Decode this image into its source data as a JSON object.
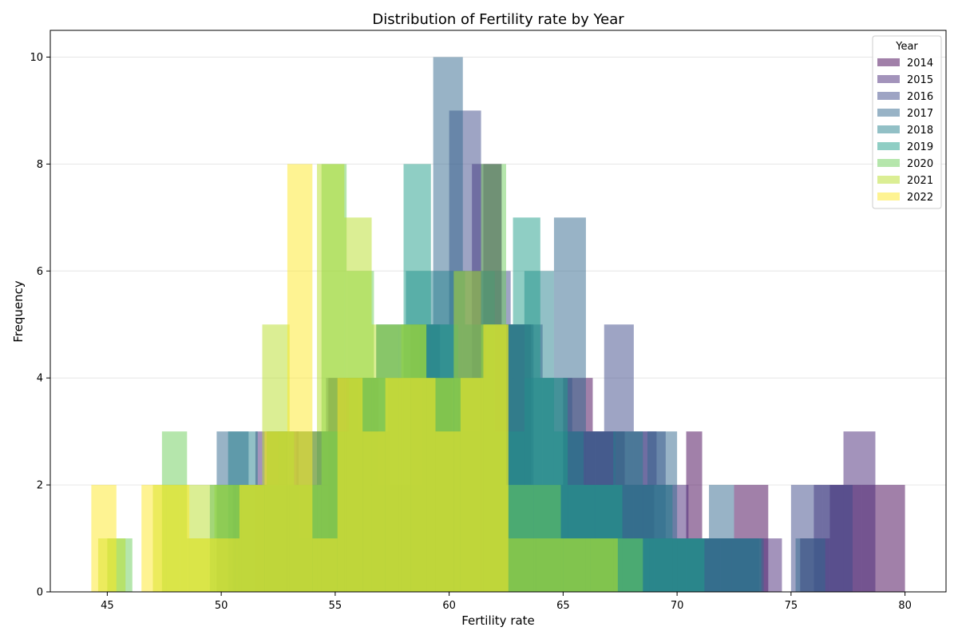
{
  "chart_data": {
    "type": "bar",
    "title": "Distribution of Fertility rate by Year",
    "xlabel": "Fertility rate",
    "ylabel": "Frequency",
    "xlim": [
      42.5,
      81.8
    ],
    "ylim": [
      0,
      10.5
    ],
    "xticks": [
      45,
      50,
      55,
      60,
      65,
      70,
      75,
      80
    ],
    "yticks": [
      0,
      2,
      4,
      6,
      8,
      10
    ],
    "grid": "horizontal",
    "legend": {
      "title": "Year",
      "position": "top-right"
    },
    "bar_opacity": 0.5,
    "series": [
      {
        "name": "2014",
        "color": "#440154",
        "bins": [
          [
            52.0,
            53.4,
            3
          ],
          [
            53.4,
            54.7,
            1
          ],
          [
            54.7,
            56.1,
            4
          ],
          [
            56.1,
            57.4,
            3
          ],
          [
            57.4,
            58.8,
            2
          ],
          [
            58.8,
            60.1,
            4
          ],
          [
            60.1,
            61.5,
            3
          ],
          [
            61.5,
            62.3,
            8
          ],
          [
            62.3,
            63.6,
            5
          ],
          [
            63.6,
            65.0,
            2
          ],
          [
            65.0,
            66.3,
            4
          ],
          [
            66.3,
            67.7,
            3
          ],
          [
            67.7,
            69.0,
            2
          ],
          [
            69.0,
            70.4,
            1
          ],
          [
            70.4,
            71.1,
            3
          ],
          [
            71.1,
            72.5,
            1
          ],
          [
            72.5,
            74.0,
            2
          ],
          [
            74.0,
            75.4,
            0
          ],
          [
            75.4,
            76.7,
            1
          ],
          [
            76.7,
            78.1,
            2
          ],
          [
            78.1,
            80.0,
            2
          ]
        ]
      },
      {
        "name": "2015",
        "color": "#482878",
        "bins": [
          [
            51.5,
            52.9,
            3
          ],
          [
            52.9,
            54.2,
            2
          ],
          [
            54.2,
            55.6,
            3
          ],
          [
            55.6,
            56.9,
            4
          ],
          [
            56.9,
            58.3,
            2
          ],
          [
            58.3,
            59.6,
            5
          ],
          [
            59.6,
            61.0,
            4
          ],
          [
            61.0,
            62.3,
            8
          ],
          [
            62.3,
            63.7,
            5
          ],
          [
            63.7,
            65.0,
            2
          ],
          [
            65.0,
            66.4,
            3
          ],
          [
            66.4,
            67.8,
            3
          ],
          [
            67.8,
            69.1,
            3
          ],
          [
            69.1,
            70.5,
            2
          ],
          [
            70.5,
            71.9,
            1
          ],
          [
            71.9,
            73.2,
            1
          ],
          [
            73.2,
            74.6,
            1
          ],
          [
            74.6,
            76.0,
            0
          ],
          [
            76.0,
            77.3,
            2
          ],
          [
            77.3,
            78.7,
            3
          ]
        ]
      },
      {
        "name": "2016",
        "color": "#3e4989",
        "bins": [
          [
            50.5,
            51.9,
            2
          ],
          [
            51.9,
            53.3,
            2
          ],
          [
            53.3,
            54.6,
            3
          ],
          [
            54.6,
            56.0,
            4
          ],
          [
            56.0,
            57.3,
            3
          ],
          [
            57.3,
            58.7,
            4
          ],
          [
            58.7,
            60.0,
            5
          ],
          [
            60.0,
            61.4,
            9
          ],
          [
            61.4,
            62.7,
            6
          ],
          [
            62.7,
            64.1,
            5
          ],
          [
            64.1,
            65.4,
            4
          ],
          [
            65.4,
            66.8,
            3
          ],
          [
            66.8,
            68.1,
            5
          ],
          [
            68.1,
            69.5,
            3
          ],
          [
            69.5,
            70.9,
            1
          ],
          [
            70.9,
            72.2,
            1
          ],
          [
            72.2,
            73.6,
            1
          ],
          [
            73.6,
            75.0,
            0
          ],
          [
            75.0,
            76.4,
            2
          ],
          [
            76.4,
            77.7,
            2
          ]
        ]
      },
      {
        "name": "2017",
        "color": "#31688e",
        "bins": [
          [
            49.8,
            51.2,
            3
          ],
          [
            51.2,
            52.5,
            2
          ],
          [
            52.5,
            53.9,
            3
          ],
          [
            53.9,
            55.2,
            3
          ],
          [
            55.2,
            56.6,
            4
          ],
          [
            56.6,
            58.0,
            4
          ],
          [
            58.0,
            59.3,
            5
          ],
          [
            59.3,
            60.6,
            10
          ],
          [
            60.6,
            62.0,
            6
          ],
          [
            62.0,
            63.3,
            5
          ],
          [
            63.3,
            64.6,
            4
          ],
          [
            64.6,
            66.0,
            7
          ],
          [
            66.0,
            67.3,
            3
          ],
          [
            67.3,
            68.7,
            2
          ],
          [
            68.7,
            70.0,
            3
          ],
          [
            70.0,
            71.4,
            1
          ],
          [
            71.4,
            72.5,
            2
          ],
          [
            72.5,
            73.8,
            1
          ],
          [
            73.8,
            75.2,
            0
          ],
          [
            75.2,
            76.5,
            1
          ]
        ]
      },
      {
        "name": "2018",
        "color": "#26828e",
        "bins": [
          [
            50.3,
            51.6,
            3
          ],
          [
            51.6,
            52.9,
            2
          ],
          [
            52.9,
            54.2,
            2
          ],
          [
            54.2,
            55.5,
            3
          ],
          [
            55.5,
            56.8,
            4
          ],
          [
            56.8,
            58.1,
            5
          ],
          [
            58.1,
            59.4,
            6
          ],
          [
            59.4,
            60.7,
            6
          ],
          [
            60.7,
            62.0,
            5
          ],
          [
            62.0,
            63.3,
            3
          ],
          [
            63.3,
            64.6,
            6
          ],
          [
            64.6,
            65.9,
            3
          ],
          [
            65.9,
            67.2,
            2
          ],
          [
            67.2,
            68.5,
            3
          ],
          [
            68.5,
            69.8,
            2
          ],
          [
            69.8,
            71.1,
            1
          ],
          [
            71.1,
            72.4,
            1
          ],
          [
            72.4,
            73.7,
            1
          ]
        ]
      },
      {
        "name": "2019",
        "color": "#1f9e89",
        "bins": [
          [
            49.5,
            50.8,
            2
          ],
          [
            50.8,
            52.0,
            2
          ],
          [
            52.0,
            53.2,
            3
          ],
          [
            53.2,
            54.4,
            2
          ],
          [
            54.4,
            55.6,
            3
          ],
          [
            55.6,
            56.8,
            4
          ],
          [
            56.8,
            58.0,
            5
          ],
          [
            58.0,
            59.2,
            8
          ],
          [
            59.2,
            60.4,
            5
          ],
          [
            60.4,
            61.6,
            4
          ],
          [
            61.6,
            62.8,
            5
          ],
          [
            62.8,
            64.0,
            7
          ],
          [
            64.0,
            65.2,
            4
          ],
          [
            65.2,
            66.4,
            2
          ],
          [
            66.4,
            67.6,
            2
          ],
          [
            67.6,
            68.8,
            1
          ],
          [
            68.8,
            70.0,
            1
          ],
          [
            70.0,
            71.2,
            1
          ]
        ]
      },
      {
        "name": "2020",
        "color": "#6ccd5a",
        "bins": [
          [
            45.0,
            46.1,
            1
          ],
          [
            46.1,
            47.4,
            0
          ],
          [
            47.4,
            48.5,
            3
          ],
          [
            48.5,
            49.7,
            1
          ],
          [
            49.7,
            50.9,
            2
          ],
          [
            50.9,
            52.0,
            2
          ],
          [
            52.0,
            53.2,
            3
          ],
          [
            53.2,
            54.4,
            2
          ],
          [
            54.4,
            55.5,
            8
          ],
          [
            55.5,
            56.7,
            6
          ],
          [
            56.7,
            57.9,
            4
          ],
          [
            57.9,
            59.0,
            5
          ],
          [
            59.0,
            60.2,
            4
          ],
          [
            60.2,
            61.4,
            4
          ],
          [
            61.4,
            62.5,
            8
          ],
          [
            62.5,
            63.7,
            2
          ],
          [
            63.7,
            64.9,
            2
          ],
          [
            64.9,
            66.0,
            1
          ],
          [
            66.0,
            67.2,
            1
          ],
          [
            67.2,
            68.5,
            1
          ]
        ]
      },
      {
        "name": "2021",
        "color": "#b8de29",
        "bins": [
          [
            44.6,
            45.8,
            1
          ],
          [
            45.8,
            47.0,
            0
          ],
          [
            47.0,
            48.2,
            2
          ],
          [
            48.2,
            49.4,
            2
          ],
          [
            49.4,
            50.6,
            2
          ],
          [
            50.6,
            51.8,
            2
          ],
          [
            51.8,
            53.0,
            5
          ],
          [
            53.0,
            54.2,
            3
          ],
          [
            54.2,
            55.4,
            8
          ],
          [
            55.4,
            56.6,
            7
          ],
          [
            56.6,
            57.8,
            5
          ],
          [
            57.8,
            59.0,
            5
          ],
          [
            59.0,
            60.2,
            4
          ],
          [
            60.2,
            61.4,
            6
          ],
          [
            61.4,
            62.6,
            5
          ],
          [
            62.6,
            63.8,
            1
          ],
          [
            63.8,
            65.0,
            1
          ],
          [
            65.0,
            66.2,
            1
          ],
          [
            66.2,
            67.4,
            1
          ]
        ]
      },
      {
        "name": "2022",
        "color": "#fde725",
        "bins": [
          [
            44.3,
            45.4,
            2
          ],
          [
            45.4,
            46.5,
            0
          ],
          [
            46.5,
            47.6,
            2
          ],
          [
            47.6,
            48.6,
            2
          ],
          [
            48.6,
            49.7,
            1
          ],
          [
            49.7,
            50.8,
            1
          ],
          [
            50.8,
            51.9,
            2
          ],
          [
            51.9,
            52.9,
            3
          ],
          [
            52.9,
            54.0,
            8
          ],
          [
            54.0,
            55.1,
            1
          ],
          [
            55.1,
            56.2,
            4
          ],
          [
            56.2,
            57.2,
            3
          ],
          [
            57.2,
            58.3,
            4
          ],
          [
            58.3,
            59.4,
            4
          ],
          [
            59.4,
            60.5,
            3
          ],
          [
            60.5,
            61.5,
            4
          ],
          [
            61.5,
            62.6,
            5
          ]
        ]
      }
    ]
  }
}
